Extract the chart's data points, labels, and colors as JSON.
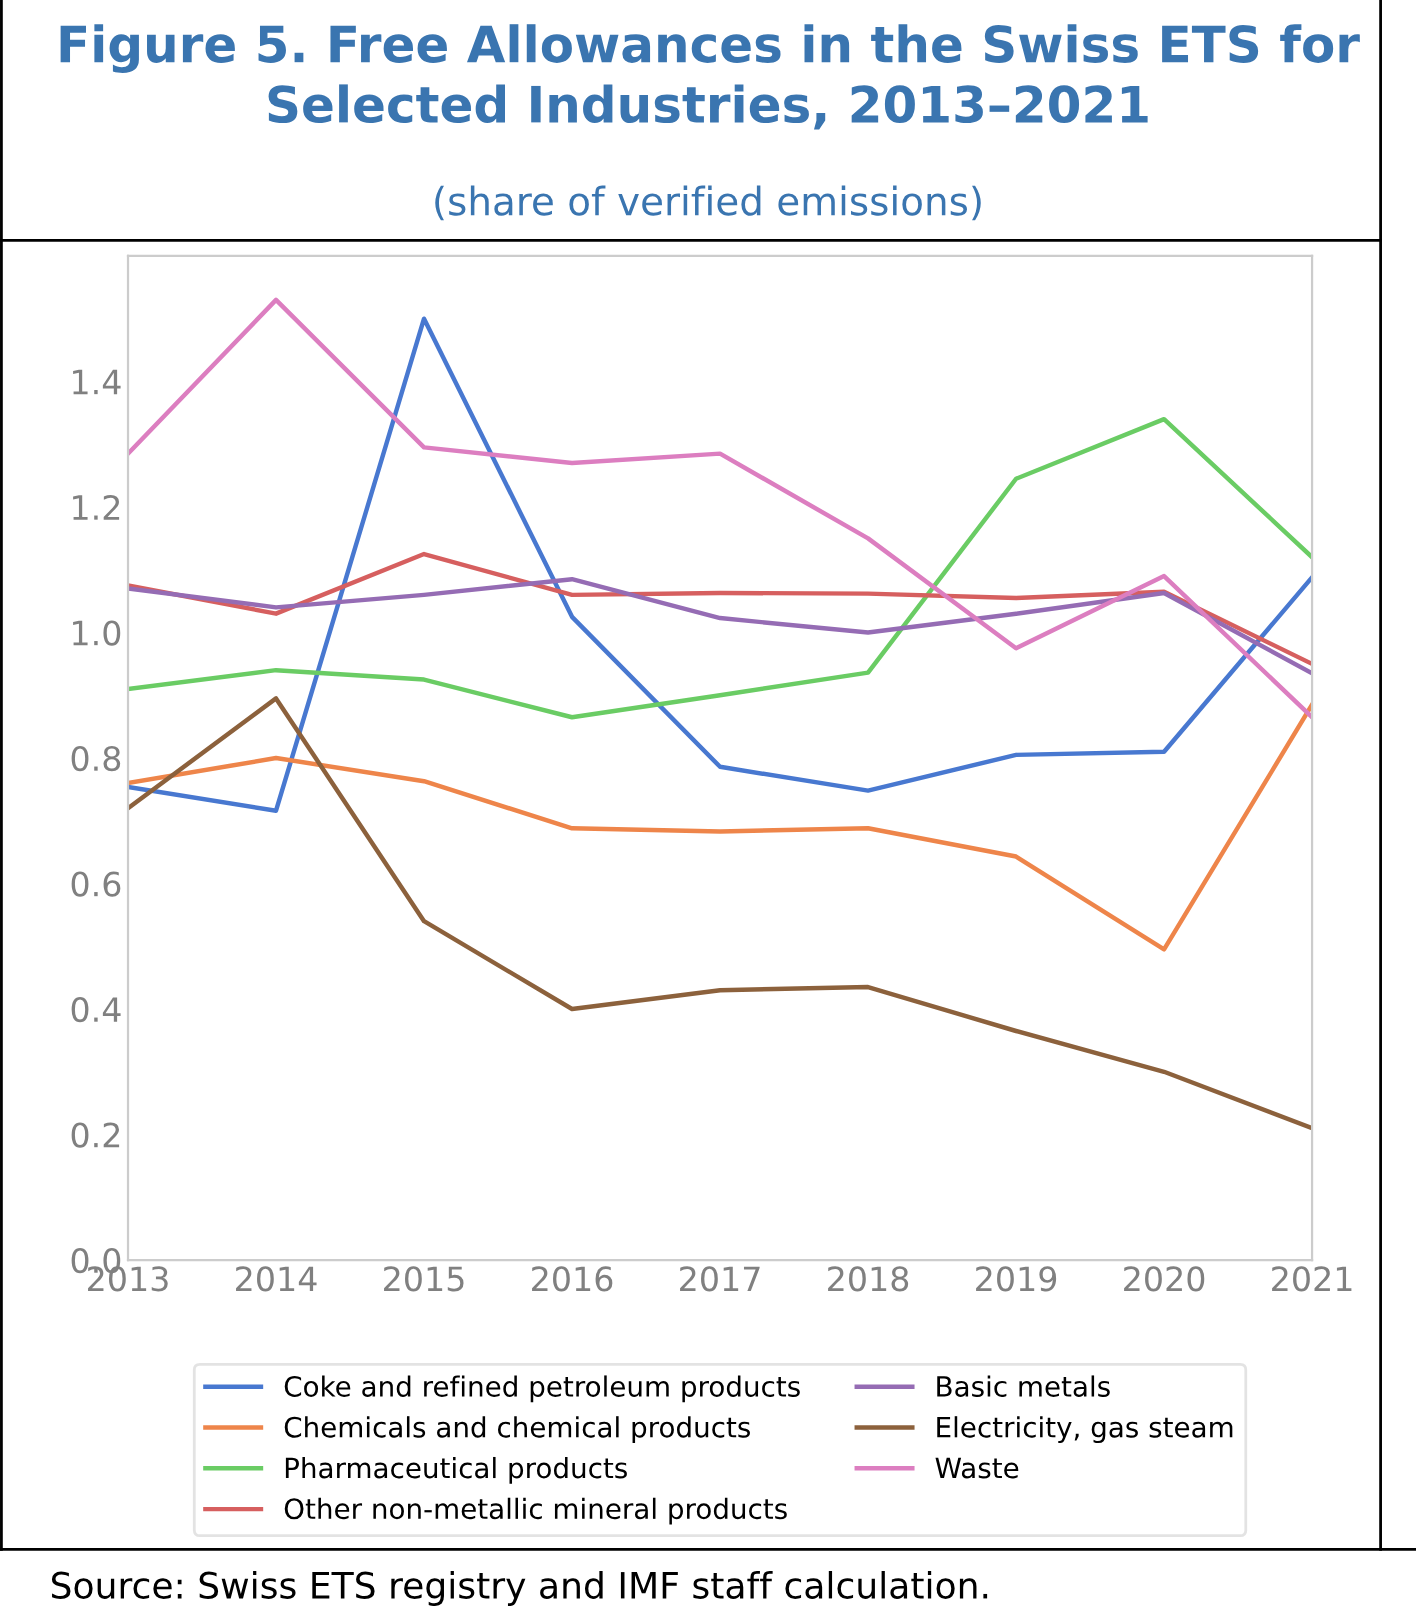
{
  "chart_data": {
    "type": "line",
    "title": "Figure 5. Free Allowances in the Swiss ETS for\nSelected Industries, 2013–2021",
    "subtitle": "(share of verified emissions)",
    "x": [
      2013,
      2014,
      2015,
      2016,
      2017,
      2018,
      2019,
      2020,
      2021
    ],
    "series": [
      {
        "name": "Coke and refined petroleum products",
        "color": "#4878d0",
        "values": [
          0.754,
          0.716,
          1.5,
          1.025,
          0.786,
          0.748,
          0.805,
          0.81,
          1.088
        ]
      },
      {
        "name": "Chemicals and chemical products",
        "color": "#ee854a",
        "values": [
          0.76,
          0.8,
          0.763,
          0.688,
          0.683,
          0.688,
          0.643,
          0.495,
          0.885
        ]
      },
      {
        "name": "Pharmaceutical products",
        "color": "#6acc64",
        "values": [
          0.91,
          0.94,
          0.925,
          0.865,
          0.9,
          0.936,
          1.245,
          1.34,
          1.12
        ]
      },
      {
        "name": "Other non-metallic mineral products",
        "color": "#d65f5f",
        "values": [
          1.075,
          1.03,
          1.125,
          1.06,
          1.063,
          1.062,
          1.055,
          1.065,
          0.95
        ]
      },
      {
        "name": "Basic metals",
        "color": "#956cb4",
        "values": [
          1.07,
          1.04,
          1.06,
          1.085,
          1.023,
          1.0,
          1.03,
          1.063,
          0.935
        ]
      },
      {
        "name": "Electricity, gas steam",
        "color": "#8c613c",
        "values": [
          0.72,
          0.895,
          0.54,
          0.4,
          0.43,
          0.435,
          0.365,
          0.3,
          0.21
        ]
      },
      {
        "name": "Waste",
        "color": "#dc7ec0",
        "values": [
          1.285,
          1.53,
          1.295,
          1.27,
          1.285,
          1.15,
          0.975,
          1.09,
          0.865
        ]
      }
    ],
    "xlim": [
      2013,
      2021
    ],
    "xticks": [
      2013,
      2014,
      2015,
      2016,
      2017,
      2018,
      2019,
      2020,
      2021
    ],
    "ylim": [
      0,
      1.6
    ],
    "yticks": [
      {
        "value": 0,
        "label": "0.0"
      },
      0.2,
      0.4,
      0.6,
      0.8,
      {
        "value": 1,
        "label": "1.0"
      },
      1.2,
      1.4
    ],
    "grid": false,
    "legend": "bottom",
    "line_style": "solid",
    "marker": "none",
    "annotations": [
      "Source: Swiss ETS registry and IMF staff calculation."
    ]
  }
}
